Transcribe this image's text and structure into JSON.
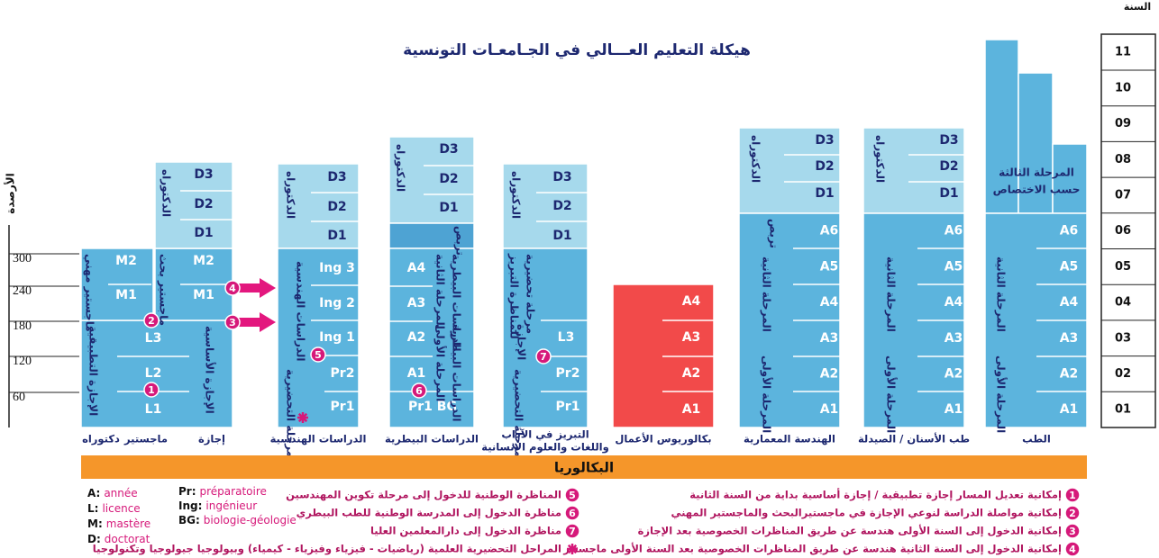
{
  "title": "هيكلة التعليم العـــالي في الجـامعـات التونسية",
  "year_axis": {
    "label": "السنة",
    "years": [
      "01",
      "02",
      "03",
      "04",
      "05",
      "06",
      "07",
      "08",
      "09",
      "10",
      "11"
    ]
  },
  "credit_axis": {
    "label": "الأرصدة",
    "values": [
      "60",
      "120",
      "180",
      "240",
      "300"
    ]
  },
  "columns": [
    {
      "caption": [
        "دكتوراه",
        "ماجستير",
        "إجازة"
      ],
      "labels": [
        "L1",
        "L2",
        "L3",
        "M1",
        "M2",
        "M1",
        "M2",
        "D1",
        "D2",
        "D3"
      ],
      "vertical": [
        "الإجازة التطبيقية",
        "الإجازة الأساسية",
        "ماجستير مهني",
        "ماجستير بحث",
        "الدكتوراه"
      ]
    },
    {
      "caption": [
        "الدراسات الهندسية"
      ],
      "labels": [
        "Pr1",
        "Pr2",
        "Ing 1",
        "Ing 2",
        "Ing 3",
        "D1",
        "D2",
        "D3"
      ],
      "vertical": [
        "المرحلة التحضيرية",
        "الدراسات الهندسية",
        "الدكتوراه"
      ]
    },
    {
      "caption": [
        "الدراسات البيطرية"
      ],
      "labels": [
        "Pr1 BG",
        "A1",
        "A2",
        "A3",
        "A4",
        "D1",
        "D2",
        "D3"
      ],
      "vertical": [
        "المرحلة الأولى",
        "الدراسات البيطرية",
        "المرحلة الثانية",
        "الدراسات البيطرية",
        "تربص",
        "الدكتوراه"
      ]
    },
    {
      "caption": [
        "التبريز في الآداب",
        "واللغات والعلوم الانسانية"
      ],
      "labels": [
        "Pr1",
        "Pr2",
        "L3",
        "D1",
        "D2",
        "D3"
      ],
      "vertical": [
        "المرحلة التحضيرية",
        "الإجازة",
        "مرحلة تحضيرية",
        "للمناظرة التبريز",
        "الدكتوراه"
      ]
    },
    {
      "caption": [
        "بكالوريوس الأعمال"
      ],
      "labels": [
        "A1",
        "A2",
        "A3",
        "A4"
      ],
      "vertical": []
    },
    {
      "caption": [
        "الهندسة المعمارية"
      ],
      "labels": [
        "A1",
        "A2",
        "A3",
        "A4",
        "A5",
        "A6",
        "D1",
        "D2",
        "D3"
      ],
      "vertical": [
        "المرحلة الأولى",
        "المرحلة الثانية",
        "تربص",
        "الدكتوراه"
      ]
    },
    {
      "caption": [
        "طب الأسنان / الصيدلة"
      ],
      "labels": [
        "A1",
        "A2",
        "A3",
        "A4",
        "A5",
        "A6",
        "D1",
        "D2",
        "D3"
      ],
      "vertical": [
        "المرحلة الأولى",
        "المرحلة الثانية",
        "الدكتوراه"
      ]
    },
    {
      "caption": [
        "الطب"
      ],
      "labels": [
        "A1",
        "A2",
        "A3",
        "A4",
        "A5",
        "A6",
        "المرحلة الثالثة",
        "حسب الاختصاص"
      ],
      "vertical": [
        "المرحلة الأولى",
        "المرحلة الثانية"
      ]
    }
  ],
  "baccalaureate": "البكالوريا",
  "abbreviations": [
    [
      {
        "key": "A:",
        "text": "année"
      },
      {
        "key": "L:",
        "text": "licence"
      },
      {
        "key": "M:",
        "text": "mastère"
      },
      {
        "key": "D:",
        "text": "doctorat"
      }
    ],
    [
      {
        "key": "Pr:",
        "text": "préparatoire"
      },
      {
        "key": "Ing:",
        "text": "ingénieur"
      },
      {
        "key": "BG:",
        "text": "biologie-géologie"
      }
    ]
  ],
  "notes_right": [
    {
      "marker": "1",
      "text": "إمكانية تعديل المسار إجازة تطبيقية / إجازة أساسية بداية من السنة الثانية"
    },
    {
      "marker": "2",
      "text": "إمكانية مواصلة الدراسة لنوعي الإجازة في ماجستيرالبحث والماجستير المهني"
    },
    {
      "marker": "3",
      "text": "إمكانية الدخول إلى السنة الأولى هندسة عن طريق المناظرات الخصوصية بعد الإجازة"
    },
    {
      "marker": "4",
      "text": "إمكانية الدخول إلى السنة الثانية هندسة عن طريق المناظرات الخصوصية بعد السنة الأولى ماجستير"
    }
  ],
  "notes_middle": [
    {
      "marker": "5",
      "text": "المناظرة الوطنية للدخول إلى مرحلة تكوين المهندسين"
    },
    {
      "marker": "6",
      "text": "مناظرة الدخول إلى المدرسة الوطنية للطب البيطري"
    },
    {
      "marker": "7",
      "text": "مناظرة الدخول إلى دارالمعلمين العليا"
    },
    {
      "text": "المراحل التحضيرية العلمية (رياضيات - فيزياء وفيزياء - كيمياء) وبيولوجيا جيولوجيا وتكنولوجيا"
    }
  ]
}
